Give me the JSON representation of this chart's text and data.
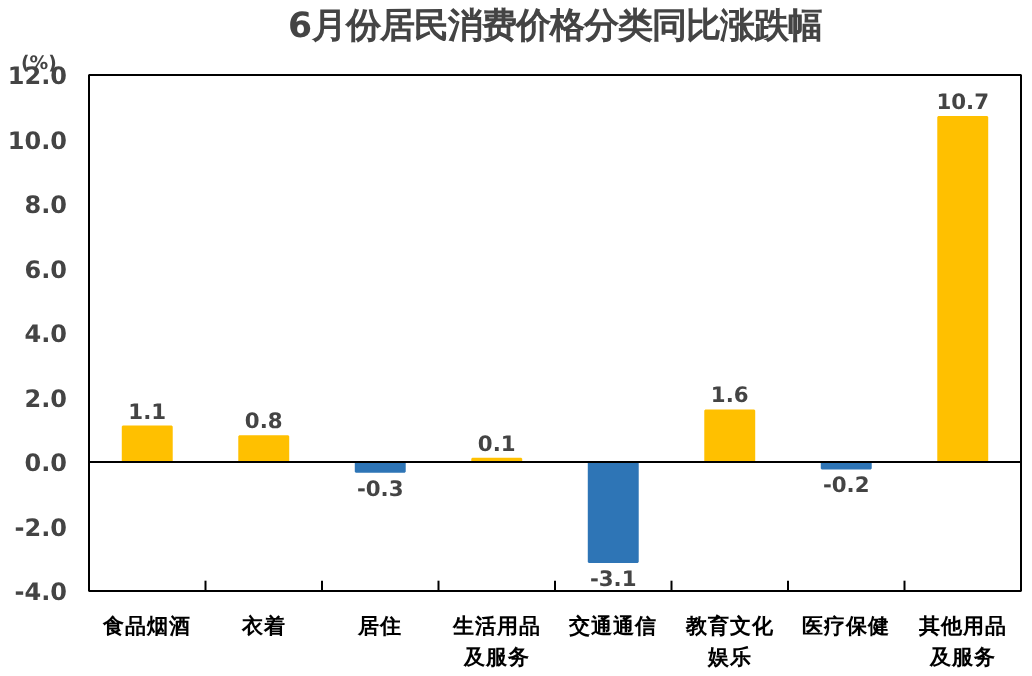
{
  "chart_data": {
    "type": "bar",
    "title": "6月份居民消费价格分类同比涨跌幅",
    "ylabel": "(%)",
    "categories": [
      "食品烟酒",
      "衣着",
      "居住",
      "生活用品及服务",
      "交通通信",
      "教育文化娱乐",
      "医疗保健",
      "其他用品及服务"
    ],
    "values": [
      1.1,
      0.8,
      -0.3,
      0.1,
      -3.1,
      1.6,
      -0.2,
      10.7
    ],
    "colors": [
      "#ffc000",
      "#ffc000",
      "#2e75b6",
      "#ffc000",
      "#2e75b6",
      "#ffc000",
      "#2e75b6",
      "#ffc000"
    ],
    "ylim": [
      -4,
      12
    ],
    "yticks": [
      {
        "value": -4,
        "label": "-4.0"
      },
      {
        "value": -2,
        "label": "-2.0"
      },
      {
        "value": 0,
        "label": "0.0"
      },
      {
        "value": 2,
        "label": "2.0"
      },
      {
        "value": 4,
        "label": "4.0"
      },
      {
        "value": 6,
        "label": "6.0"
      },
      {
        "value": 8,
        "label": "8.0"
      },
      {
        "value": 10,
        "label": "10.0"
      },
      {
        "value": 12,
        "label": "12.0"
      }
    ],
    "ref_lines": [
      {
        "axis": "y",
        "value": 0,
        "color": "#000000"
      }
    ],
    "data_labels": true,
    "grid": false,
    "legend": false
  }
}
